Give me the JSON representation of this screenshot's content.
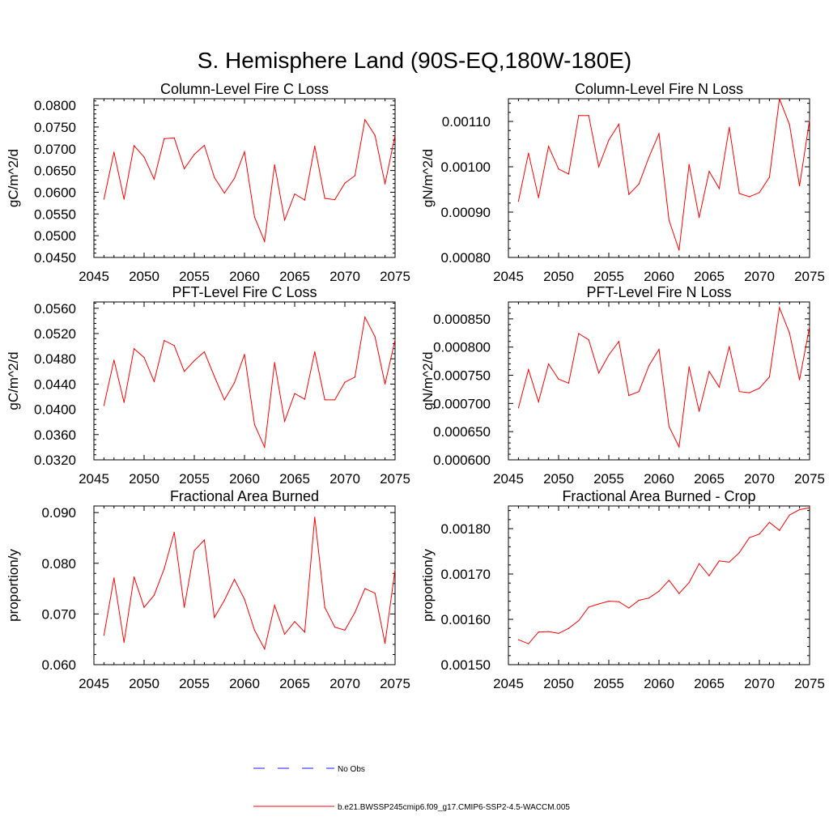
{
  "title": "S. Hemisphere Land (90S-EQ,180W-180E)",
  "chart_data": [
    {
      "type": "line",
      "title": "Column-Level Fire C Loss",
      "ylabel": "gC/m^2/d",
      "xlim": [
        2045,
        2075
      ],
      "ylim": [
        0.045,
        0.0815
      ],
      "xticks": [
        2045,
        2050,
        2055,
        2060,
        2065,
        2070,
        2075
      ],
      "xticklabels": [
        "2045",
        "2050",
        "2055",
        "2060",
        "2065",
        "2070",
        "2075"
      ],
      "yticks": [
        0.045,
        0.05,
        0.055,
        0.06,
        0.065,
        0.07,
        0.075,
        0.08
      ],
      "yticklabels": [
        "0.0450",
        "0.0500",
        "0.0550",
        "0.0600",
        "0.0650",
        "0.0700",
        "0.0750",
        "0.0800"
      ],
      "x": [
        2046,
        2047,
        2048,
        2049,
        2050,
        2051,
        2052,
        2053,
        2054,
        2055,
        2056,
        2057,
        2058,
        2059,
        2060,
        2061,
        2062,
        2063,
        2064,
        2065,
        2066,
        2067,
        2068,
        2069,
        2070,
        2071,
        2072,
        2073,
        2074,
        2075
      ],
      "series": [
        {
          "name": "b.e21.BWSSP245cmip6.f09_g17.CMIP6-SSP2-4.5-WACCM.005",
          "color": "#ff0000",
          "values": [
            0.0584,
            0.0692,
            0.0584,
            0.0707,
            0.0681,
            0.063,
            0.0723,
            0.0725,
            0.0654,
            0.0687,
            0.0708,
            0.0634,
            0.0598,
            0.0632,
            0.0693,
            0.0543,
            0.0487,
            0.0663,
            0.0536,
            0.0596,
            0.0582,
            0.0706,
            0.0586,
            0.0583,
            0.0621,
            0.0638,
            0.0767,
            0.0731,
            0.0619,
            0.0731
          ]
        }
      ]
    },
    {
      "type": "line",
      "title": "Column-Level Fire N Loss",
      "ylabel": "gN/m^2/d",
      "xlim": [
        2045,
        2075
      ],
      "ylim": [
        0.0008,
        0.00115
      ],
      "xticks": [
        2045,
        2050,
        2055,
        2060,
        2065,
        2070,
        2075
      ],
      "xticklabels": [
        "2045",
        "2050",
        "2055",
        "2060",
        "2065",
        "2070",
        "2075"
      ],
      "yticks": [
        0.0008,
        0.0009,
        0.001,
        0.0011
      ],
      "yticklabels": [
        "0.00080",
        "0.00090",
        "0.00100",
        "0.00110"
      ],
      "x": [
        2046,
        2047,
        2048,
        2049,
        2050,
        2051,
        2052,
        2053,
        2054,
        2055,
        2056,
        2057,
        2058,
        2059,
        2060,
        2061,
        2062,
        2063,
        2064,
        2065,
        2066,
        2067,
        2068,
        2069,
        2070,
        2071,
        2072,
        2073,
        2074,
        2075
      ],
      "series": [
        {
          "name": "b.e21.BWSSP245cmip6.f09_g17.CMIP6-SSP2-4.5-WACCM.005",
          "color": "#ff0000",
          "values": [
            0.000924,
            0.00103,
            0.000932,
            0.001045,
            0.000995,
            0.000984,
            0.001113,
            0.001113,
            0.001,
            0.001059,
            0.001094,
            0.000939,
            0.000962,
            0.001021,
            0.001073,
            0.000882,
            0.000816,
            0.001005,
            0.000888,
            0.00099,
            0.000952,
            0.001087,
            0.000941,
            0.000934,
            0.000943,
            0.000977,
            0.00115,
            0.001093,
            0.000958,
            0.001103
          ]
        }
      ]
    },
    {
      "type": "line",
      "title": "PFT-Level Fire C Loss",
      "ylabel": "gC/m^2/d",
      "xlim": [
        2045,
        2075
      ],
      "ylim": [
        0.032,
        0.057
      ],
      "xticks": [
        2045,
        2050,
        2055,
        2060,
        2065,
        2070,
        2075
      ],
      "xticklabels": [
        "2045",
        "2050",
        "2055",
        "2060",
        "2065",
        "2070",
        "2075"
      ],
      "yticks": [
        0.032,
        0.036,
        0.04,
        0.044,
        0.048,
        0.052,
        0.056
      ],
      "yticklabels": [
        "0.0320",
        "0.0360",
        "0.0400",
        "0.0440",
        "0.0480",
        "0.0520",
        "0.0560"
      ],
      "x": [
        2046,
        2047,
        2048,
        2049,
        2050,
        2051,
        2052,
        2053,
        2054,
        2055,
        2056,
        2057,
        2058,
        2059,
        2060,
        2061,
        2062,
        2063,
        2064,
        2065,
        2066,
        2067,
        2068,
        2069,
        2070,
        2071,
        2072,
        2073,
        2074,
        2075
      ],
      "series": [
        {
          "name": "b.e21.BWSSP245cmip6.f09_g17.CMIP6-SSP2-4.5-WACCM.005",
          "color": "#ff0000",
          "values": [
            0.0406,
            0.0478,
            0.0411,
            0.0496,
            0.0482,
            0.0444,
            0.0509,
            0.0501,
            0.046,
            0.0477,
            0.0491,
            0.0452,
            0.0415,
            0.0442,
            0.0487,
            0.0376,
            0.034,
            0.0474,
            0.0381,
            0.0425,
            0.0416,
            0.0491,
            0.0415,
            0.0415,
            0.0443,
            0.0451,
            0.0546,
            0.0515,
            0.044,
            0.051
          ]
        }
      ]
    },
    {
      "type": "line",
      "title": "PFT-Level Fire N Loss",
      "ylabel": "gN/m^2/d",
      "xlim": [
        2045,
        2075
      ],
      "ylim": [
        0.0006,
        0.00088
      ],
      "xticks": [
        2045,
        2050,
        2055,
        2060,
        2065,
        2070,
        2075
      ],
      "xticklabels": [
        "2045",
        "2050",
        "2055",
        "2060",
        "2065",
        "2070",
        "2075"
      ],
      "yticks": [
        0.0006,
        0.00065,
        0.0007,
        0.00075,
        0.0008,
        0.00085
      ],
      "yticklabels": [
        "0.000600",
        "0.000650",
        "0.000700",
        "0.000750",
        "0.000800",
        "0.000850"
      ],
      "x": [
        2046,
        2047,
        2048,
        2049,
        2050,
        2051,
        2052,
        2053,
        2054,
        2055,
        2056,
        2057,
        2058,
        2059,
        2060,
        2061,
        2062,
        2063,
        2064,
        2065,
        2066,
        2067,
        2068,
        2069,
        2070,
        2071,
        2072,
        2073,
        2074,
        2075
      ],
      "series": [
        {
          "name": "b.e21.BWSSP245cmip6.f09_g17.CMIP6-SSP2-4.5-WACCM.005",
          "color": "#ff0000",
          "values": [
            0.000692,
            0.00076,
            0.000703,
            0.00077,
            0.000743,
            0.000736,
            0.000824,
            0.000813,
            0.000754,
            0.000786,
            0.00081,
            0.000714,
            0.000721,
            0.000767,
            0.000796,
            0.000659,
            0.000623,
            0.000765,
            0.000686,
            0.000757,
            0.000729,
            0.000801,
            0.000721,
            0.000719,
            0.000727,
            0.000747,
            0.00087,
            0.000825,
            0.000742,
            0.000836
          ]
        }
      ]
    },
    {
      "type": "line",
      "title": "Fractional Area Burned",
      "ylabel": "proportion/y",
      "xlim": [
        2045,
        2075
      ],
      "ylim": [
        0.06,
        0.0913
      ],
      "xticks": [
        2045,
        2050,
        2055,
        2060,
        2065,
        2070,
        2075
      ],
      "xticklabels": [
        "2045",
        "2050",
        "2055",
        "2060",
        "2065",
        "2070",
        "2075"
      ],
      "yticks": [
        0.06,
        0.07,
        0.08,
        0.09
      ],
      "yticklabels": [
        "0.060",
        "0.070",
        "0.080",
        "0.090"
      ],
      "x": [
        2046,
        2047,
        2048,
        2049,
        2050,
        2051,
        2052,
        2053,
        2054,
        2055,
        2056,
        2057,
        2058,
        2059,
        2060,
        2061,
        2062,
        2063,
        2064,
        2065,
        2066,
        2067,
        2068,
        2069,
        2070,
        2071,
        2072,
        2073,
        2074,
        2075
      ],
      "series": [
        {
          "name": "b.e21.BWSSP245cmip6.f09_g17.CMIP6-SSP2-4.5-WACCM.005",
          "color": "#ff0000",
          "values": [
            0.0658,
            0.0771,
            0.0644,
            0.0773,
            0.0713,
            0.0737,
            0.0789,
            0.0861,
            0.0713,
            0.0825,
            0.0846,
            0.0693,
            0.0727,
            0.0768,
            0.0729,
            0.0668,
            0.0631,
            0.0717,
            0.066,
            0.0685,
            0.0664,
            0.0891,
            0.0713,
            0.0674,
            0.0668,
            0.0703,
            0.075,
            0.0741,
            0.0642,
            0.0788
          ]
        }
      ]
    },
    {
      "type": "line",
      "title": "Fractional Area Burned - Crop",
      "ylabel": "proportion/y",
      "xlim": [
        2045,
        2075
      ],
      "ylim": [
        0.0015,
        0.00185
      ],
      "xticks": [
        2045,
        2050,
        2055,
        2060,
        2065,
        2070,
        2075
      ],
      "xticklabels": [
        "2045",
        "2050",
        "2055",
        "2060",
        "2065",
        "2070",
        "2075"
      ],
      "yticks": [
        0.0015,
        0.0016,
        0.0017,
        0.0018
      ],
      "yticklabels": [
        "0.00150",
        "0.00160",
        "0.00170",
        "0.00180"
      ],
      "x": [
        2046,
        2047,
        2048,
        2049,
        2050,
        2051,
        2052,
        2053,
        2054,
        2055,
        2056,
        2057,
        2058,
        2059,
        2060,
        2061,
        2062,
        2063,
        2064,
        2065,
        2066,
        2067,
        2068,
        2069,
        2070,
        2071,
        2072,
        2073,
        2074,
        2075
      ],
      "series": [
        {
          "name": "b.e21.BWSSP245cmip6.f09_g17.CMIP6-SSP2-4.5-WACCM.005",
          "color": "#ff0000",
          "values": [
            0.001555,
            0.001546,
            0.001572,
            0.001573,
            0.001569,
            0.00158,
            0.001597,
            0.001627,
            0.001634,
            0.00164,
            0.001639,
            0.001625,
            0.001642,
            0.001647,
            0.001662,
            0.001686,
            0.001657,
            0.001681,
            0.001723,
            0.001696,
            0.001729,
            0.001726,
            0.001747,
            0.00178,
            0.001788,
            0.001814,
            0.001796,
            0.00183,
            0.001842,
            0.001846
          ]
        }
      ]
    }
  ],
  "legend": {
    "items": [
      {
        "label": "No Obs",
        "color": "#1a1aff",
        "style": "dashed"
      },
      {
        "label": "b.e21.BWSSP245cmip6.f09_g17.CMIP6-SSP2-4.5-WACCM.005",
        "color": "#ff0000",
        "style": "solid"
      }
    ]
  }
}
